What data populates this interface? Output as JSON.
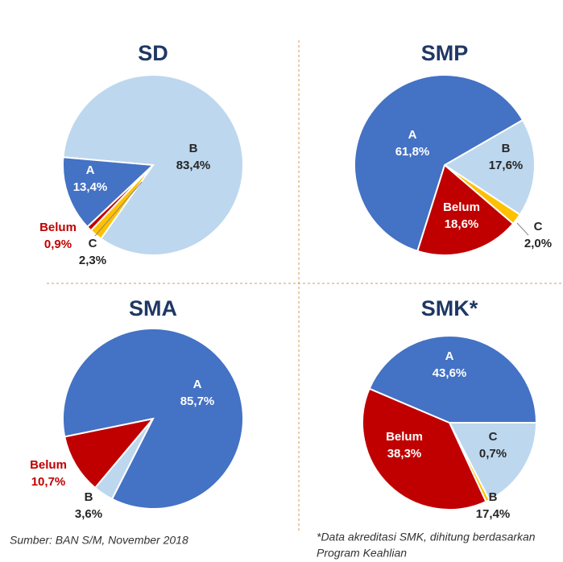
{
  "chart_data": [
    {
      "type": "pie",
      "title": "SD",
      "categories": [
        "B",
        "C",
        "Belum",
        "A"
      ],
      "values": [
        83.4,
        2.3,
        0.9,
        13.4
      ],
      "value_labels": [
        "83,4%",
        "2,3%",
        "0,9%",
        "13,4%"
      ],
      "colors": [
        "#bdd7ee",
        "#ffc000",
        "#c00000",
        "#4472c4"
      ]
    },
    {
      "type": "pie",
      "title": "SMP",
      "categories": [
        "B",
        "C",
        "Belum",
        "A"
      ],
      "values": [
        17.6,
        2.0,
        18.6,
        61.8
      ],
      "value_labels": [
        "17,6%",
        "2,0%",
        "18,6%",
        "61,8%"
      ],
      "colors": [
        "#bdd7ee",
        "#ffc000",
        "#c00000",
        "#4472c4"
      ]
    },
    {
      "type": "pie",
      "title": "SMA",
      "categories": [
        "B",
        "Belum",
        "A"
      ],
      "values": [
        3.6,
        10.7,
        85.7
      ],
      "value_labels": [
        "3,6%",
        "10,7%",
        "85,7%"
      ],
      "colors": [
        "#bdd7ee",
        "#c00000",
        "#4472c4"
      ]
    },
    {
      "type": "pie",
      "title": "SMK*",
      "categories": [
        "B",
        "C",
        "Belum",
        "A"
      ],
      "values": [
        17.4,
        0.7,
        38.3,
        43.6
      ],
      "value_labels": [
        "17,4%",
        "0,7%",
        "38,3%",
        "43,6%"
      ],
      "colors": [
        "#bdd7ee",
        "#ffc000",
        "#c00000",
        "#4472c4"
      ]
    }
  ],
  "source": "Sumber: BAN S/M, November 2018",
  "footnote": [
    "*Data akreditasi SMK, dihitung berdasarkan",
    "Program Keahlian"
  ]
}
